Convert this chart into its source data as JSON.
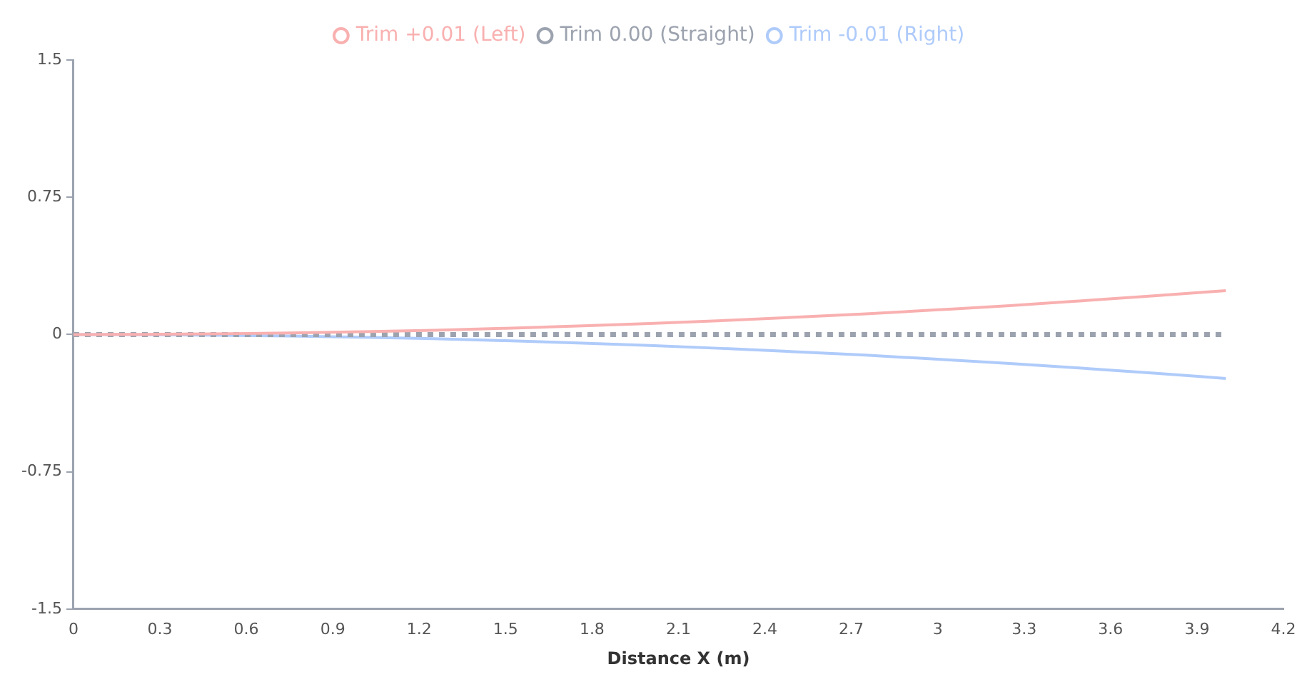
{
  "chart_data": {
    "type": "line",
    "xlabel": "Distance X (m)",
    "x": [
      0,
      0.25,
      0.5,
      0.75,
      1,
      1.25,
      1.5,
      1.75,
      2,
      2.25,
      2.5,
      2.75,
      3,
      3.25,
      3.5,
      3.75,
      4
    ],
    "series": [
      {
        "name": "Trim +0.01 (Left)",
        "color": "#f9b0b0",
        "line_style": "solid",
        "values": [
          0,
          0.001,
          0.004,
          0.008,
          0.015,
          0.023,
          0.034,
          0.046,
          0.06,
          0.076,
          0.094,
          0.113,
          0.135,
          0.158,
          0.184,
          0.211,
          0.24
        ]
      },
      {
        "name": "Trim 0.00 (Straight)",
        "color": "#9ca3af",
        "line_style": "dotted",
        "values": [
          0,
          0,
          0,
          0,
          0,
          0,
          0,
          0,
          0,
          0,
          0,
          0,
          0,
          0,
          0,
          0,
          0
        ]
      },
      {
        "name": "Trim -0.01 (Right)",
        "color": "#afcbfa",
        "line_style": "solid",
        "values": [
          0,
          -0.001,
          -0.004,
          -0.008,
          -0.015,
          -0.023,
          -0.034,
          -0.046,
          -0.06,
          -0.076,
          -0.094,
          -0.113,
          -0.135,
          -0.158,
          -0.184,
          -0.211,
          -0.24
        ]
      }
    ],
    "xlim": [
      0,
      4.2
    ],
    "xticks": [
      0,
      0.3,
      0.6,
      0.9,
      1.2,
      1.5,
      1.8,
      2.1,
      2.4,
      2.7,
      3,
      3.3,
      3.6,
      3.9,
      4.2
    ],
    "ylim": [
      -1.5,
      1.5
    ],
    "yticks": [
      -1.5,
      -0.75,
      0,
      0.75,
      1.5
    ],
    "grid": false,
    "legend": "top",
    "marker": "none"
  }
}
